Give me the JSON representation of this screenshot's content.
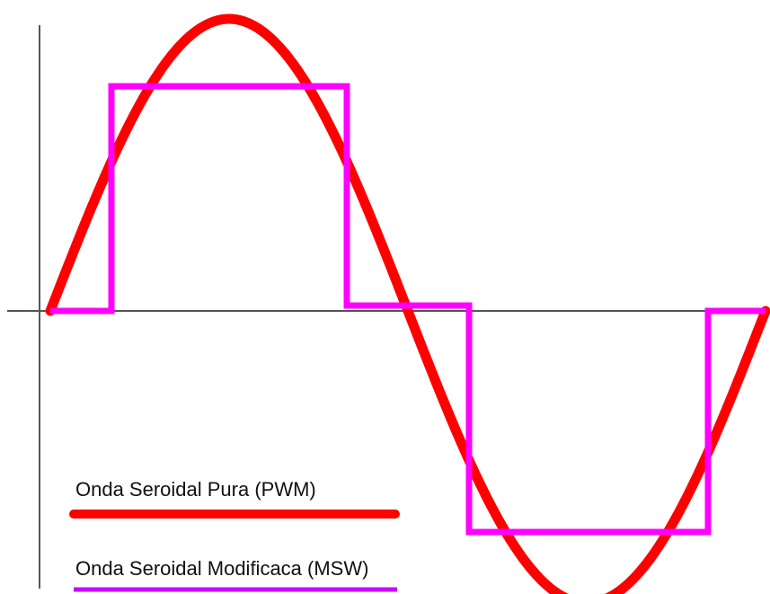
{
  "colors": {
    "background": "#ffffff",
    "axis": "#555555",
    "pure_sine": "#ff0000",
    "modified_sine": "#ff00ff"
  },
  "legend": {
    "pure_sine_label": "Onda Seroidal Pura (PWM)",
    "modified_sine_label": "Onda Seroidal Modificaca (MSW)"
  }
}
